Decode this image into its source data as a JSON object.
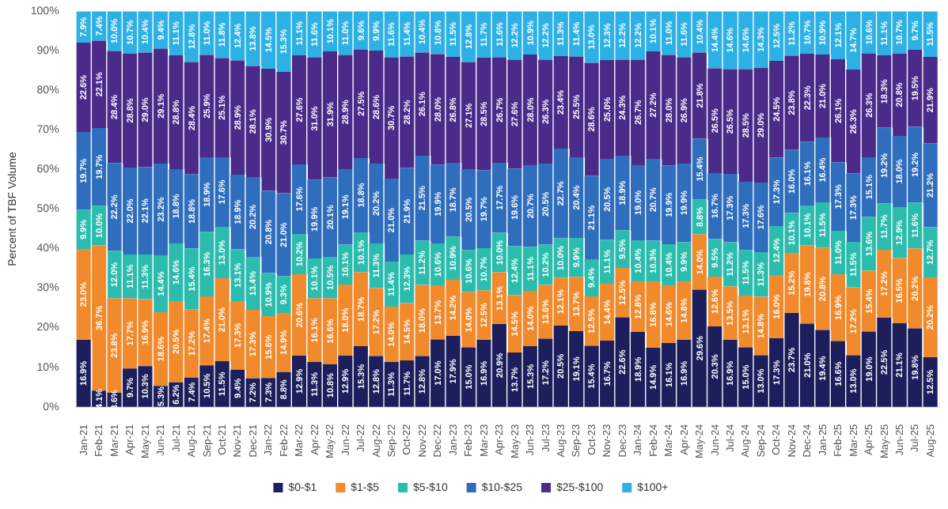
{
  "chart_data": {
    "type": "bar",
    "stacked": true,
    "ylabel": "Percent of TBF Volume",
    "legend": "bottom",
    "categories": [
      "Jan-21",
      "Feb-21",
      "Mar-21",
      "Apr-21",
      "May-21",
      "Jun-21",
      "Jul-21",
      "Aug-21",
      "Sep-21",
      "Oct-21",
      "Nov-21",
      "Dec-21",
      "Jan-22",
      "Feb-22",
      "Mar-22",
      "Apr-22",
      "May-22",
      "Jun-22",
      "Jul-22",
      "Aug-22",
      "Sep-22",
      "Oct-22",
      "Nov-22",
      "Dec-22",
      "Jan-23",
      "Feb-23",
      "Mar-23",
      "Apr-23",
      "May-23",
      "Jun-23",
      "Jul-23",
      "Aug-23",
      "Sep-23",
      "Oct-23",
      "Nov-23",
      "Dec-23",
      "Jan-24",
      "Feb-24",
      "Mar-24",
      "Apr-24",
      "May-24",
      "Jun-24",
      "Jul-24",
      "Aug-24",
      "Sep-24",
      "Oct-24",
      "Nov-24",
      "Dec-24",
      "Jan-25",
      "Feb-25",
      "Mar-25",
      "Apr-25",
      "May-25",
      "Jun-25",
      "Jul-25",
      "Aug-25"
    ],
    "ylim": [
      0,
      100
    ],
    "yticks": [
      {
        "value": 0,
        "label": "0%"
      },
      {
        "value": 10,
        "label": "10%"
      },
      {
        "value": 20,
        "label": "20%"
      },
      {
        "value": 30,
        "label": "30%"
      },
      {
        "value": 40,
        "label": "40%"
      },
      {
        "value": 50,
        "label": "50%"
      },
      {
        "value": 60,
        "label": "60%"
      },
      {
        "value": 70,
        "label": "70%"
      },
      {
        "value": 80,
        "label": "80%"
      },
      {
        "value": 90,
        "label": "90%"
      },
      {
        "value": 100,
        "label": "100%"
      }
    ],
    "series": [
      {
        "name": "$0-$1",
        "color": "#1c1f5c",
        "values": [
          16.9,
          4.1,
          3.6,
          9.7,
          10.3,
          5.3,
          6.2,
          7.4,
          10.5,
          11.5,
          9.4,
          7.2,
          7.3,
          8.8,
          12.9,
          11.3,
          10.8,
          12.9,
          15.3,
          12.8,
          11.3,
          11.7,
          12.8,
          17.0,
          17.9,
          15.0,
          16.9,
          20.9,
          13.7,
          15.3,
          17.2,
          20.5,
          19.1,
          15.4,
          16.7,
          22.6,
          18.9,
          14.9,
          16.1,
          16.9,
          29.6,
          20.3,
          16.9,
          15.0,
          13.0,
          17.3,
          23.7,
          21.0,
          19.4,
          16.6,
          13.0,
          19.0,
          22.5,
          21.1,
          19.8,
          12.5
        ],
        "value_labels": [
          "16.9%",
          "4.1%",
          "3.6%",
          "9.7%",
          "10.3%",
          "5.3%",
          "6.2%",
          "7.4%",
          "10.5%",
          "11.5%",
          "9.4%",
          "7.2%",
          "7.3%",
          "8.8%",
          "12.9%",
          "11.3%",
          "10.8%",
          "12.9%",
          "15.3%",
          "12.8%",
          "11.3%",
          "11.7%",
          "12.8%",
          "17.0%",
          "17.9%",
          "15.0%",
          "16.9%",
          "20.9%",
          "13.7%",
          "15.3%",
          "17.2%",
          "20.5%",
          "19.1%",
          "15.4%",
          "16.7%",
          "22.6%",
          "18.9%",
          "14.9%",
          "16.1%",
          "16.9%",
          "29.6%",
          "20.3%",
          "16.9%",
          "15.0%",
          "13.0%",
          "17.3%",
          "23.7%",
          "21.0%",
          "19.4%",
          "16.6%",
          "13.0%",
          "19.0%",
          "22.5%",
          "21.1%",
          "19.8%",
          "12.5%"
        ]
      },
      {
        "name": "$1-$5",
        "color": "#f08a2c",
        "values": [
          23.0,
          36.7,
          23.8,
          17.7,
          16.9,
          18.6,
          20.5,
          17.2,
          17.4,
          21.0,
          17.3,
          17.3,
          15.6,
          14.9,
          20.6,
          16.1,
          16.6,
          18.0,
          18.7,
          17.2,
          14.0,
          14.5,
          18.0,
          13.7,
          14.2,
          14.0,
          12.5,
          13.1,
          14.5,
          14.0,
          13.6,
          12.1,
          13.7,
          12.5,
          14.4,
          12.5,
          12.8,
          16.8,
          14.6,
          14.8,
          14.0,
          12.6,
          13.5,
          13.1,
          14.8,
          16.0,
          15.2,
          19.8,
          20.8,
          16.9,
          17.2,
          15.4,
          17.2,
          16.5,
          20.2,
          20.2
        ],
        "value_labels": [
          "23.0%",
          "36.7%",
          "23.8%",
          "17.7%",
          "16.9%",
          "18.6%",
          "20.5%",
          "17.2%",
          "17.4%",
          "21.0%",
          "17.3%",
          "17.3%",
          "15.6%",
          "14.9%",
          "20.6%",
          "16.1%",
          "16.6%",
          "18.0%",
          "18.7%",
          "17.2%",
          "14.0%",
          "14.5%",
          "18.0%",
          "13.7%",
          "14.2%",
          "14.0%",
          "12.5%",
          "13.1%",
          "14.5%",
          "14.0%",
          "13.6%",
          "12.1%",
          "13.7%",
          "12.5%",
          "14.4%",
          "12.5%",
          "12.8%",
          "16.8%",
          "14.6%",
          "14.8%",
          "14.0%",
          "12.6%",
          "13.5%",
          "13.1%",
          "14.8%",
          "16.0%",
          "15.2%",
          "19.8%",
          "20.8%",
          "16.9%",
          "17.2%",
          "15.4%",
          "17.2%",
          "16.5%",
          "20.2%",
          "20.2%"
        ]
      },
      {
        "name": "$5-$10",
        "color": "#2bbcae",
        "values": [
          9.9,
          10.0,
          12.0,
          11.1,
          11.3,
          14.4,
          14.6,
          15.4,
          16.3,
          13.0,
          13.1,
          13.4,
          10.9,
          9.3,
          10.2,
          10.1,
          10.5,
          10.1,
          10.1,
          11.3,
          11.4,
          12.3,
          11.2,
          10.6,
          10.9,
          10.6,
          10.7,
          10.0,
          12.4,
          11.1,
          10.2,
          10.0,
          9.9,
          9.4,
          11.1,
          9.5,
          10.4,
          10.3,
          10.4,
          9.9,
          8.8,
          9.5,
          11.2,
          11.5,
          11.3,
          12.4,
          10.1,
          10.1,
          11.5,
          11.0,
          11.5,
          13.6,
          11.7,
          12.9,
          11.6,
          12.7
        ],
        "value_labels": [
          "9.9%",
          "10.0%",
          "12.0%",
          "11.1%",
          "11.3%",
          "14.4%",
          "14.6%",
          "15.4%",
          "16.3%",
          "13.0%",
          "13.1%",
          "13.4%",
          "10.9%",
          "9.3%",
          "10.2%",
          "10.1%",
          "10.5%",
          "10.1%",
          "10.1%",
          "11.3%",
          "11.4%",
          "12.3%",
          "11.2%",
          "10.6%",
          "10.9%",
          "10.6%",
          "10.7%",
          "10.0%",
          "12.4%",
          "11.1%",
          "10.2%",
          "10.0%",
          "9.9%",
          "9.4%",
          "11.1%",
          "9.5%",
          "10.4%",
          "10.3%",
          "10.4%",
          "9.9%",
          "8.8%",
          "9.5%",
          "11.2%",
          "11.5%",
          "11.3%",
          "12.4%",
          "10.1%",
          "10.1%",
          "11.5%",
          "11.0%",
          "11.5%",
          "13.6%",
          "11.7%",
          "12.9%",
          "11.6%",
          "12.7%"
        ]
      },
      {
        "name": "$10-$25",
        "color": "#2f6dbd",
        "values": [
          19.7,
          19.7,
          22.2,
          22.0,
          22.1,
          23.2,
          18.8,
          18.8,
          18.9,
          17.6,
          18.9,
          20.2,
          20.8,
          21.0,
          17.6,
          19.9,
          20.1,
          19.1,
          18.8,
          20.2,
          21.0,
          21.9,
          21.5,
          19.9,
          18.7,
          20.5,
          19.7,
          17.7,
          19.6,
          20.7,
          20.5,
          22.7,
          20.4,
          21.1,
          20.5,
          18.9,
          19.0,
          20.7,
          19.9,
          19.9,
          15.4,
          16.7,
          17.3,
          17.3,
          17.6,
          17.3,
          16.0,
          16.1,
          16.4,
          17.3,
          17.3,
          15.1,
          19.2,
          18.0,
          19.2,
          21.2
        ],
        "value_labels": [
          "19.7%",
          "19.7%",
          "22.2%",
          "22.0%",
          "22.1%",
          "23.2%",
          "18.8%",
          "18.8%",
          "18.9%",
          "17.6%",
          "18.9%",
          "20.2%",
          "20.8%",
          "21.0%",
          "17.6%",
          "19.9%",
          "20.1%",
          "19.1%",
          "18.8%",
          "20.2%",
          "21.0%",
          "21.9%",
          "21.5%",
          "19.9%",
          "18.7%",
          "20.5%",
          "19.7%",
          "17.7%",
          "19.6%",
          "20.7%",
          "20.5%",
          "22.7%",
          "20.4%",
          "21.1%",
          "20.5%",
          "18.9%",
          "19.0%",
          "20.7%",
          "19.9%",
          "19.9%",
          "15.4%",
          "16.7%",
          "17.3%",
          "17.3%",
          "17.6%",
          "17.3%",
          "16.0%",
          "16.1%",
          "16.4%",
          "17.3%",
          "17.3%",
          "15.1%",
          "19.2%",
          "18.0%",
          "19.2%",
          "21.2%"
        ]
      },
      {
        "name": "$25-$100",
        "color": "#4a2b8a",
        "values": [
          22.6,
          22.1,
          28.4,
          28.8,
          29.0,
          29.1,
          28.8,
          28.4,
          25.9,
          25.1,
          28.9,
          28.1,
          30.9,
          30.7,
          27.6,
          31.0,
          31.9,
          28.9,
          27.5,
          28.6,
          30.7,
          28.2,
          26.1,
          28.0,
          26.8,
          27.1,
          28.5,
          26.7,
          27.6,
          28.0,
          26.3,
          23.4,
          25.5,
          28.6,
          25.0,
          24.3,
          26.7,
          27.2,
          28.0,
          26.9,
          21.8,
          26.5,
          26.5,
          28.5,
          29.0,
          24.5,
          23.8,
          22.3,
          21.0,
          26.1,
          26.3,
          26.3,
          18.3,
          20.8,
          19.5,
          21.9
        ],
        "value_labels": [
          "22.6%",
          "22.1%",
          "28.4%",
          "28.8%",
          "29.0%",
          "29.1%",
          "28.8%",
          "28.4%",
          "25.9%",
          "25.1%",
          "28.9%",
          "28.1%",
          "30.9%",
          "30.7%",
          "27.6%",
          "31.0%",
          "31.9%",
          "28.9%",
          "27.5%",
          "28.6%",
          "30.7%",
          "28.2%",
          "26.1%",
          "28.0%",
          "26.8%",
          "27.1%",
          "28.5%",
          "26.7%",
          "27.6%",
          "28.0%",
          "26.3%",
          "23.4%",
          "25.5%",
          "28.6%",
          "25.0%",
          "24.3%",
          "26.7%",
          "27.2%",
          "28.0%",
          "26.9%",
          "21.8%",
          "26.5%",
          "26.5%",
          "28.5%",
          "29.0%",
          "24.5%",
          "23.8%",
          "22.3%",
          "21.0%",
          "26.1%",
          "26.3%",
          "26.3%",
          "18.3%",
          "20.8%",
          "19.5%",
          "21.9%"
        ]
      },
      {
        "name": "$100+",
        "color": "#2db1e5",
        "values": [
          7.9,
          7.4,
          10.0,
          10.7,
          10.4,
          9.4,
          11.1,
          12.8,
          11.0,
          11.8,
          12.4,
          13.8,
          14.5,
          15.3,
          11.1,
          11.6,
          10.1,
          11.0,
          9.6,
          9.9,
          11.6,
          11.4,
          10.4,
          10.8,
          11.5,
          12.8,
          11.7,
          11.6,
          12.2,
          10.9,
          12.2,
          11.3,
          11.4,
          13.0,
          12.3,
          12.2,
          12.2,
          10.1,
          11.0,
          11.6,
          10.4,
          14.4,
          14.6,
          14.6,
          14.3,
          12.5,
          11.2,
          10.7,
          10.9,
          12.1,
          14.7,
          10.6,
          11.1,
          10.7,
          9.7,
          11.5
        ],
        "value_labels": [
          "7.9%",
          "7.4%",
          "10.0%",
          "10.7%",
          "10.4%",
          "9.4%",
          "11.1%",
          "12.8%",
          "11.0%",
          "11.8%",
          "12.4%",
          "13.8%",
          "14.5%",
          "15.3%",
          "11.1%",
          "11.6%",
          "10.1%",
          "11.0%",
          "9.6%",
          "9.9%",
          "11.6%",
          "11.4%",
          "10.4%",
          "10.8%",
          "11.5%",
          "12.8%",
          "11.7%",
          "11.6%",
          "12.2%",
          "10.9%",
          "12.2%",
          "11.3%",
          "11.4%",
          "13.0%",
          "12.3%",
          "12.2%",
          "12.2%",
          "10.1%",
          "11.0%",
          "11.6%",
          "10.4%",
          "14.4%",
          "14.6%",
          "14.6%",
          "14.3%",
          "12.5%",
          "11.2%",
          "10.7%",
          "10.9%",
          "12.1%",
          "14.7%",
          "10.6%",
          "11.1%",
          "10.7%",
          "9.7%",
          "11.5%"
        ]
      }
    ]
  }
}
